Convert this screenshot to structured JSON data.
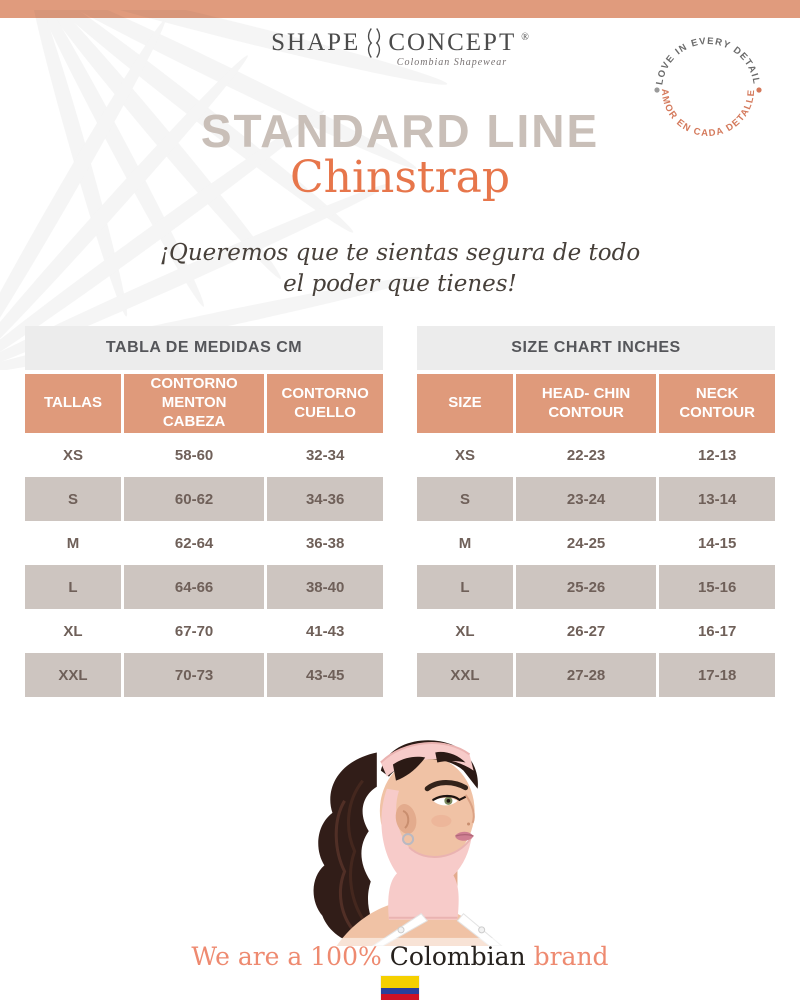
{
  "brand": {
    "name_left": "SHAPE",
    "name_right": "CONCEPT",
    "registered": "®",
    "tagline": "Colombian Shapewear"
  },
  "badge": {
    "top_text": "LOVE IN EVERY DETAIL",
    "bottom_text": "AMOR EN CADA DETALLE"
  },
  "title": {
    "line1": "STANDARD LINE",
    "line2": "Chinstrap"
  },
  "quote": {
    "line1": "¡Queremos que te sientas segura de todo",
    "line2": "el poder que tienes!"
  },
  "tables": [
    {
      "title": "TABLA DE MEDIDAS CM",
      "columns": [
        "TALLAS",
        "CONTORNO MENTON CABEZA",
        "CONTORNO CUELLO"
      ],
      "rows": [
        [
          "XS",
          "58-60",
          "32-34"
        ],
        [
          "S",
          "60-62",
          "34-36"
        ],
        [
          "M",
          "62-64",
          "36-38"
        ],
        [
          "L",
          "64-66",
          "38-40"
        ],
        [
          "XL",
          "67-70",
          "41-43"
        ],
        [
          "XXL",
          "70-73",
          "43-45"
        ]
      ]
    },
    {
      "title": "SIZE CHART INCHES",
      "columns": [
        "SIZE",
        "HEAD- CHIN CONTOUR",
        "NECK CONTOUR"
      ],
      "rows": [
        [
          "XS",
          "22-23",
          "12-13"
        ],
        [
          "S",
          "23-24",
          "13-14"
        ],
        [
          "M",
          "24-25",
          "14-15"
        ],
        [
          "L",
          "25-26",
          "15-16"
        ],
        [
          "XL",
          "26-27",
          "16-17"
        ],
        [
          "XXL",
          "27-28",
          "17-18"
        ]
      ]
    }
  ],
  "footer": {
    "part1": "We are a 100% ",
    "part2": "Colombian",
    "part3": " brand"
  },
  "product_image": {
    "description": "Woman in side profile with dark ponytail wearing a pink chinstrap compression garment and white bra straps"
  },
  "colors": {
    "accent_salmon": "#df9a7b",
    "title_orange": "#e7764b",
    "title_gray": "#c9bfb8",
    "row_gray": "#cdc5c0",
    "table_title_bg": "#ececec",
    "footer_coral": "#ee8a70",
    "flag_yellow": "#f5d000",
    "flag_blue": "#2a3f9d",
    "flag_red": "#cf1126"
  }
}
